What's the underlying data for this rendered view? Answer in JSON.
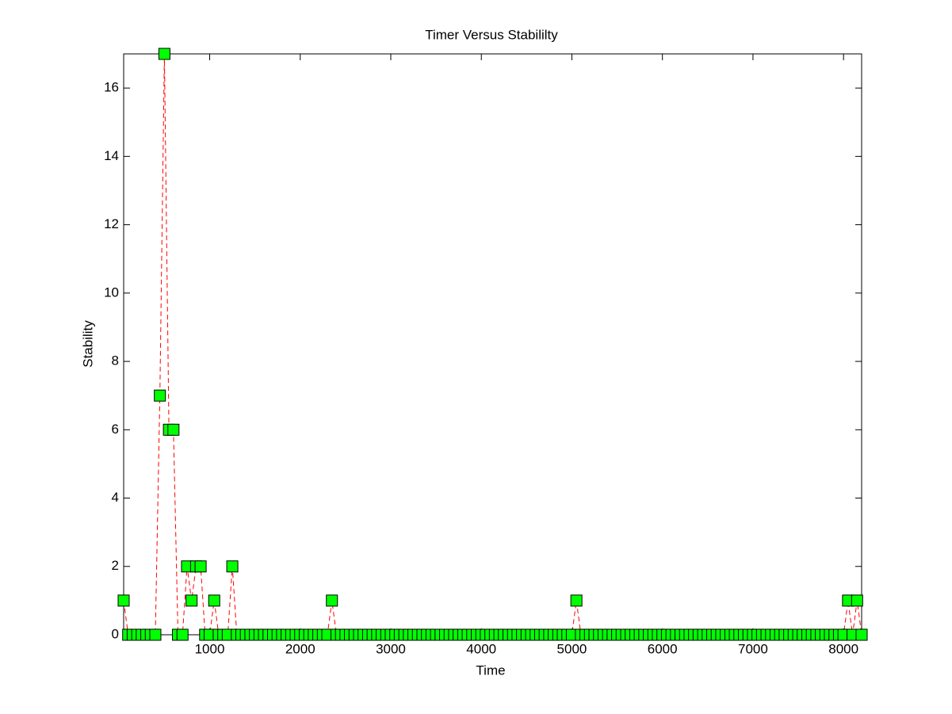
{
  "chart_data": {
    "type": "line",
    "title": "Timer Versus Stabililty",
    "xlabel": "Time",
    "ylabel": "Stability",
    "x": [
      50,
      100,
      150,
      200,
      250,
      300,
      350,
      400,
      450,
      500,
      550,
      600,
      650,
      700,
      750,
      800,
      850,
      900,
      950,
      1000,
      1050,
      1100,
      1150,
      1200,
      1250,
      1300,
      1350,
      1400,
      1450,
      1500,
      1550,
      1600,
      1650,
      1700,
      1750,
      1800,
      1850,
      1900,
      1950,
      2000,
      2050,
      2100,
      2150,
      2200,
      2250,
      2300,
      2350,
      2400,
      2450,
      2500,
      2550,
      2600,
      2650,
      2700,
      2750,
      2800,
      2850,
      2900,
      2950,
      3000,
      3050,
      3100,
      3150,
      3200,
      3250,
      3300,
      3350,
      3400,
      3450,
      3500,
      3550,
      3600,
      3650,
      3700,
      3750,
      3800,
      3850,
      3900,
      3950,
      4000,
      4050,
      4100,
      4150,
      4200,
      4250,
      4300,
      4350,
      4400,
      4450,
      4500,
      4550,
      4600,
      4650,
      4700,
      4750,
      4800,
      4850,
      4900,
      4950,
      5000,
      5050,
      5100,
      5150,
      5200,
      5250,
      5300,
      5350,
      5400,
      5450,
      5500,
      5550,
      5600,
      5650,
      5700,
      5750,
      5800,
      5850,
      5900,
      5950,
      6000,
      6050,
      6100,
      6150,
      6200,
      6250,
      6300,
      6350,
      6400,
      6450,
      6500,
      6550,
      6600,
      6650,
      6700,
      6750,
      6800,
      6850,
      6900,
      6950,
      7000,
      7050,
      7100,
      7150,
      7200,
      7250,
      7300,
      7350,
      7400,
      7450,
      7500,
      7550,
      7600,
      7650,
      7700,
      7750,
      7800,
      7850,
      7900,
      7950,
      8000,
      8050,
      8100,
      8150,
      8200
    ],
    "series": [
      {
        "name": "Stability",
        "color": "#ff0000",
        "marker_color": "#00ff00",
        "values": [
          1,
          0,
          0,
          0,
          0,
          0,
          0,
          0,
          7,
          17,
          6,
          6,
          0,
          0,
          2,
          1,
          2,
          2,
          0,
          0,
          1,
          0,
          0,
          0,
          2,
          0,
          0,
          0,
          0,
          0,
          0,
          0,
          0,
          0,
          0,
          0,
          0,
          0,
          0,
          0,
          0,
          0,
          0,
          0,
          0,
          0,
          1,
          0,
          0,
          0,
          0,
          0,
          0,
          0,
          0,
          0,
          0,
          0,
          0,
          0,
          0,
          0,
          0,
          0,
          0,
          0,
          0,
          0,
          0,
          0,
          0,
          0,
          0,
          0,
          0,
          0,
          0,
          0,
          0,
          0,
          0,
          0,
          0,
          0,
          0,
          0,
          0,
          0,
          0,
          0,
          0,
          0,
          0,
          0,
          0,
          0,
          0,
          0,
          0,
          0,
          1,
          0,
          0,
          0,
          0,
          0,
          0,
          0,
          0,
          0,
          0,
          0,
          0,
          0,
          0,
          0,
          0,
          0,
          0,
          0,
          0,
          0,
          0,
          0,
          0,
          0,
          0,
          0,
          0,
          0,
          0,
          0,
          0,
          0,
          0,
          0,
          0,
          0,
          0,
          0,
          0,
          0,
          0,
          0,
          0,
          0,
          0,
          0,
          0,
          0,
          0,
          0,
          0,
          0,
          0,
          0,
          0,
          0,
          0,
          0,
          1,
          0,
          1,
          0
        ]
      }
    ],
    "xlim": [
      50,
      8200
    ],
    "xticks": [
      1000,
      2000,
      3000,
      4000,
      5000,
      6000,
      7000,
      8000
    ],
    "ylim": [
      0,
      17
    ],
    "yticks": [
      0,
      2,
      4,
      6,
      8,
      10,
      12,
      14,
      16
    ]
  }
}
